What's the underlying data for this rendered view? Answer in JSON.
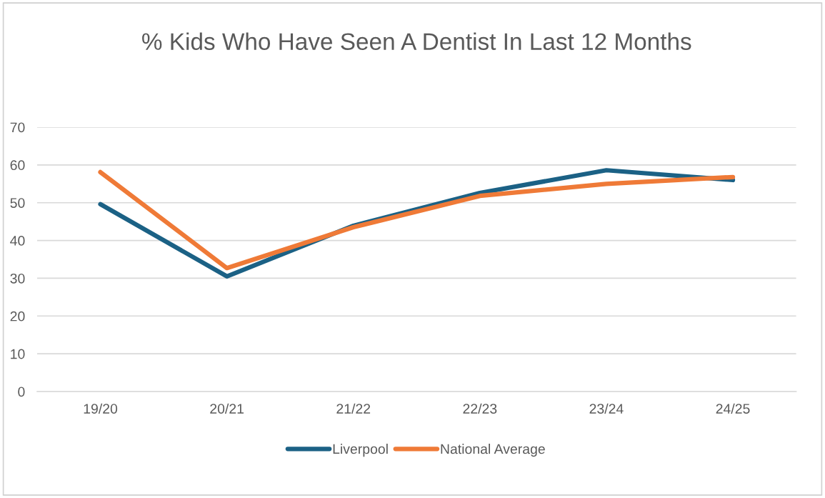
{
  "chart_data": {
    "type": "line",
    "title": "% Kids Who Have Seen A Dentist In Last 12 Months",
    "categories": [
      "19/20",
      "20/21",
      "21/22",
      "22/23",
      "23/24",
      "24/25"
    ],
    "series": [
      {
        "name": "Liverpool",
        "color": "#1b6185",
        "values": [
          49.6,
          30.5,
          43.9,
          52.6,
          58.6,
          56.0
        ]
      },
      {
        "name": "National Average",
        "color": "#ef7a37",
        "values": [
          58.1,
          32.7,
          43.5,
          51.8,
          55.0,
          56.8
        ]
      }
    ],
    "ylim": [
      0,
      70
    ],
    "yticks": [
      0,
      10,
      20,
      30,
      40,
      50,
      60,
      70
    ],
    "grid": "y",
    "legend": "bottom",
    "marker": "none",
    "line_style": "solid"
  }
}
